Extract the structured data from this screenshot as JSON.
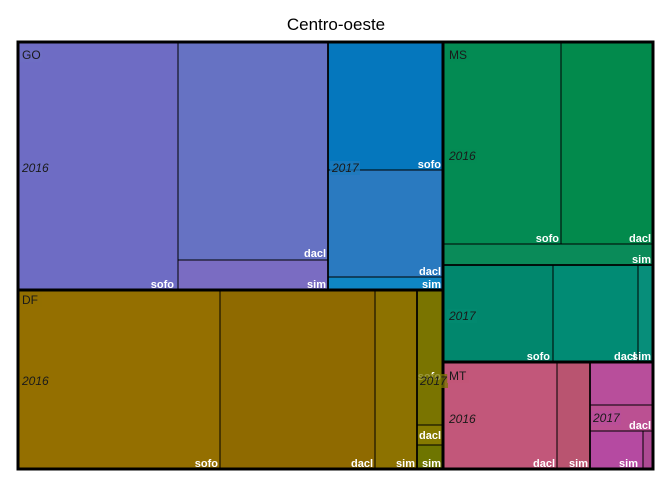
{
  "chart_data": {
    "type": "treemap",
    "title": "Centro-oeste",
    "regions": [
      {
        "name": "GO",
        "years": [
          {
            "year": "2016",
            "color": "#6f6fc4",
            "items": [
              {
                "label": "",
                "color": "#6e6cc4"
              },
              {
                "label": "dacl",
                "color": "#6672c3"
              },
              {
                "label": "sim",
                "color": "#7a6cc2"
              },
              {
                "label": "sofo",
                "color": ""
              }
            ]
          },
          {
            "year": "2017",
            "color": "#1d7bbd",
            "items": [
              {
                "label": "sofo",
                "color": "#0577bd"
              },
              {
                "label": "dacl",
                "color": "#2a7ac0"
              },
              {
                "label": "sim",
                "color": "#0f86c4"
              }
            ]
          }
        ]
      },
      {
        "name": "MS",
        "years": [
          {
            "year": "2016",
            "color": "#048a53",
            "items": [
              {
                "label": "sofo",
                "color": "#038b53"
              },
              {
                "label": "dacl",
                "color": "#028a4c"
              },
              {
                "label": "sim",
                "color": "#0a8b59"
              }
            ]
          },
          {
            "year": "2017",
            "color": "#038a70",
            "items": [
              {
                "label": "sofo",
                "color": "#01876d"
              },
              {
                "label": "dacl",
                "color": "#018b74"
              },
              {
                "label": "sim",
                "color": "#078e7a"
              }
            ]
          }
        ]
      },
      {
        "name": "DF",
        "years": [
          {
            "year": "2016",
            "color": "#936f00",
            "items": [
              {
                "label": "",
                "color": "#946f00"
              },
              {
                "label": "sofo",
                "color": "#8f6a00"
              },
              {
                "label": "dacl",
                "color": "#8d7200"
              },
              {
                "label": "sim",
                "color": "#9a7300"
              }
            ]
          },
          {
            "year": "2017",
            "color": "#7a7500",
            "items": [
              {
                "label": "sofo",
                "color": "#7a7400"
              },
              {
                "label": "dacl",
                "color": "#857a00"
              },
              {
                "label": "sim",
                "color": "#6e7500"
              }
            ]
          }
        ]
      },
      {
        "name": "MT",
        "years": [
          {
            "year": "2016",
            "color": "#c15578",
            "items": [
              {
                "label": "dacl",
                "color": "#c2577a"
              },
              {
                "label": "sim",
                "color": "#b95470"
              }
            ]
          },
          {
            "year": "2017",
            "color": "#b84e9a",
            "items": [
              {
                "label": "",
                "color": "#b84e9b"
              },
              {
                "label": "dacl",
                "color": "#bb5092"
              },
              {
                "label": "sim",
                "color": "#b54aa1"
              },
              {
                "label": "",
                "color": "#ad4a93"
              }
            ]
          }
        ]
      }
    ]
  }
}
